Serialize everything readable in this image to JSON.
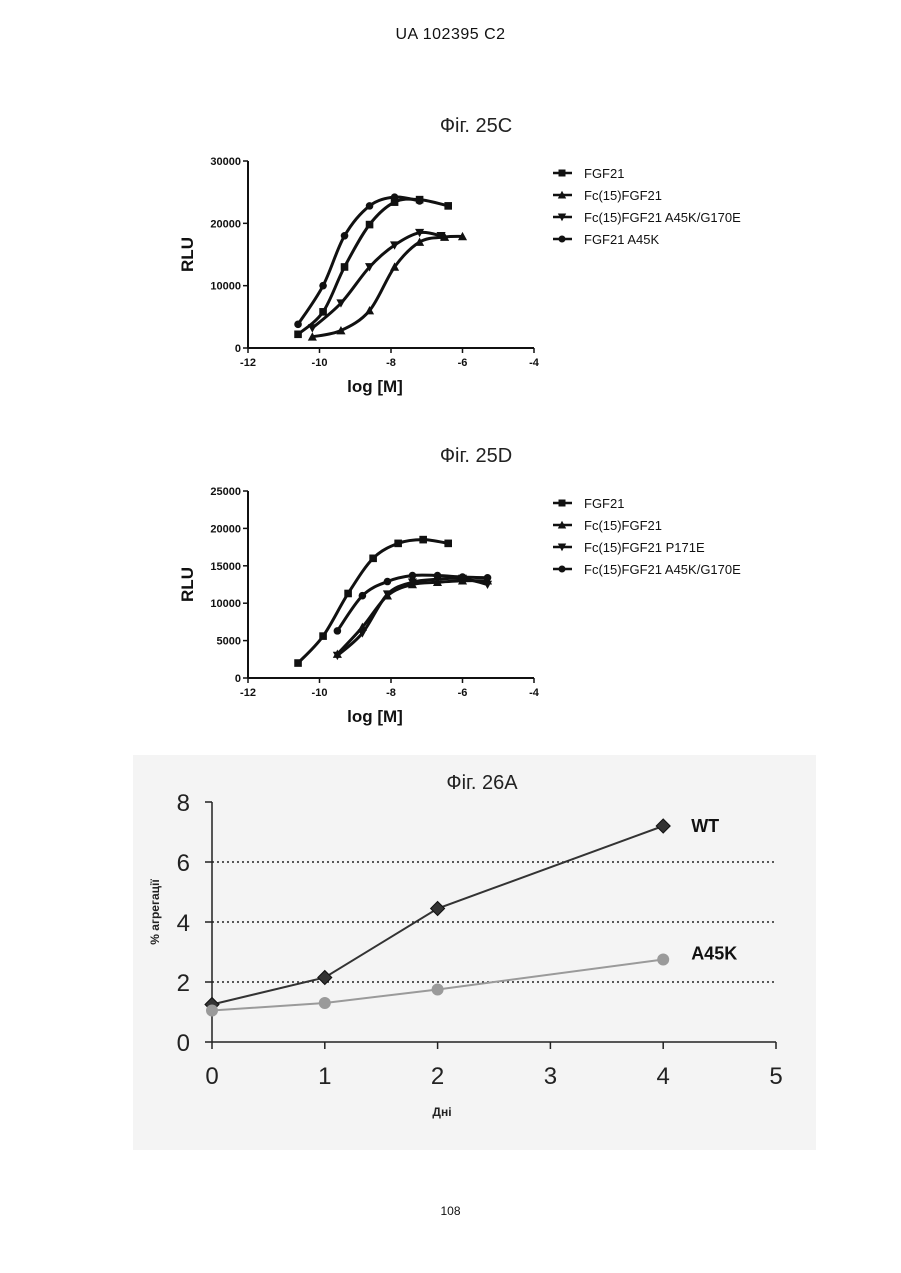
{
  "header": "UA   102395   C2",
  "footer": "108",
  "chart_data": [
    {
      "type": "scatter",
      "title": "Фіг. 25C",
      "xlabel": "log [M]",
      "ylabel": "RLU",
      "xlim": [
        -12,
        -4
      ],
      "ylim": [
        0,
        30000
      ],
      "xticks": [
        "-12",
        "-10",
        "-8",
        "-6",
        "-4"
      ],
      "yticks": [
        "0",
        "10000",
        "20000",
        "30000"
      ],
      "legend_position": "right",
      "series": [
        {
          "name": "FGF21",
          "marker": "square",
          "x": [
            -10.6,
            -9.9,
            -9.3,
            -8.6,
            -7.9,
            -7.2,
            -6.4
          ],
          "y": [
            2200,
            5800,
            13000,
            19800,
            23400,
            23800,
            22800
          ]
        },
        {
          "name": "Fc(15)FGF21",
          "marker": "triangle-up",
          "x": [
            -10.2,
            -9.4,
            -8.6,
            -7.9,
            -7.2,
            -6.5,
            -6.0
          ],
          "y": [
            1800,
            2800,
            6000,
            13000,
            17000,
            17800,
            17900
          ]
        },
        {
          "name": "Fc(15)FGF21 A45K/G170E",
          "marker": "triangle-down",
          "x": [
            -10.2,
            -9.4,
            -8.6,
            -7.9,
            -7.2,
            -6.6
          ],
          "y": [
            3200,
            7200,
            13000,
            16500,
            18500,
            18000
          ]
        },
        {
          "name": "FGF21 A45K",
          "marker": "circle",
          "x": [
            -10.6,
            -9.9,
            -9.3,
            -8.6,
            -7.9,
            -7.2
          ],
          "y": [
            3800,
            10000,
            18000,
            22800,
            24200,
            23600
          ]
        }
      ]
    },
    {
      "type": "scatter",
      "title": "Фіг. 25D",
      "xlabel": "log [M]",
      "ylabel": "RLU",
      "xlim": [
        -12,
        -4
      ],
      "ylim": [
        0,
        25000
      ],
      "xticks": [
        "-12",
        "-10",
        "-8",
        "-6",
        "-4"
      ],
      "yticks": [
        "0",
        "5000",
        "10000",
        "15000",
        "20000",
        "25000"
      ],
      "legend_position": "right",
      "series": [
        {
          "name": "FGF21",
          "marker": "square",
          "x": [
            -10.6,
            -9.9,
            -9.2,
            -8.5,
            -7.8,
            -7.1,
            -6.4
          ],
          "y": [
            2000,
            5600,
            11300,
            16000,
            18000,
            18500,
            18000
          ]
        },
        {
          "name": "Fc(15)FGF21",
          "marker": "triangle-up",
          "x": [
            -9.5,
            -8.8,
            -8.1,
            -7.4,
            -6.7,
            -6.0,
            -5.3
          ],
          "y": [
            3200,
            6800,
            11000,
            12500,
            12800,
            13000,
            13000
          ]
        },
        {
          "name": "Fc(15)FGF21 P171E",
          "marker": "triangle-down",
          "x": [
            -9.5,
            -8.8,
            -8.1,
            -7.4,
            -6.7,
            -6.0,
            -5.3
          ],
          "y": [
            3000,
            6000,
            11200,
            12800,
            13200,
            13300,
            12500
          ]
        },
        {
          "name": "Fc(15)FGF21 A45K/G170E",
          "marker": "circle",
          "x": [
            -9.5,
            -8.8,
            -8.1,
            -7.4,
            -6.7,
            -6.0,
            -5.3
          ],
          "y": [
            6300,
            11000,
            12900,
            13700,
            13700,
            13500,
            13400
          ]
        }
      ]
    },
    {
      "type": "line",
      "title": "Фіг. 26А",
      "xlabel": "Дні",
      "ylabel": "% агрегації",
      "xlim": [
        0,
        5
      ],
      "ylim": [
        0,
        8
      ],
      "xticks": [
        "0",
        "1",
        "2",
        "3",
        "4",
        "5"
      ],
      "yticks": [
        "0",
        "2",
        "4",
        "6",
        "8"
      ],
      "grid": "dotted horizontal at 2, 4, 6",
      "series": [
        {
          "name": "WT",
          "marker": "diamond",
          "color": "#333333",
          "x": [
            0,
            1,
            2,
            4
          ],
          "y": [
            1.25,
            2.15,
            4.45,
            7.2
          ]
        },
        {
          "name": "A45K",
          "marker": "circle",
          "color": "#9a9a9a",
          "x": [
            0,
            1,
            2,
            4
          ],
          "y": [
            1.05,
            1.3,
            1.75,
            2.75
          ]
        }
      ]
    }
  ]
}
